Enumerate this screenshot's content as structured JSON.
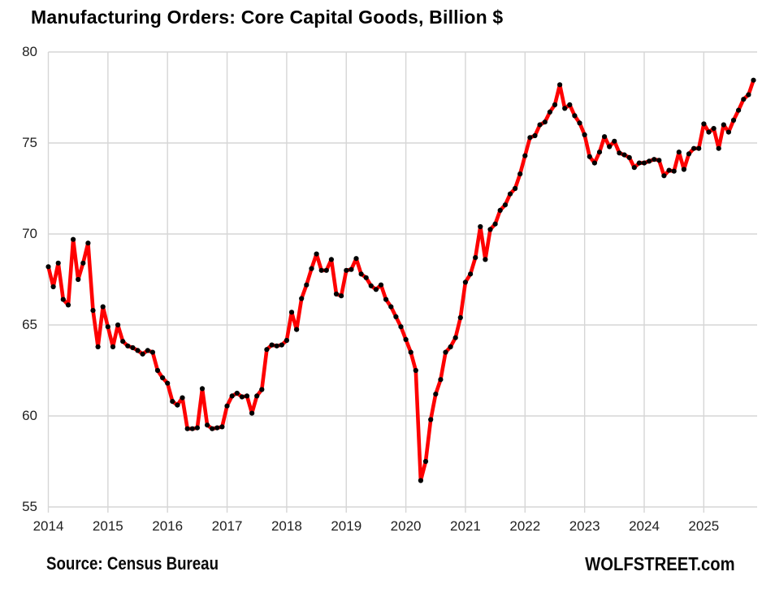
{
  "title": "Manufacturing Orders: Core Capital Goods, Billion $",
  "footer": {
    "source": "Source: Census Bureau",
    "brand": "WOLFSTREET.com"
  },
  "colors": {
    "line": "#FE0000",
    "marker": "#000000",
    "grid": "#D6D6D6",
    "axis_text": "#1f1f1f"
  },
  "chart_data": {
    "type": "line",
    "title": "Manufacturing Orders: Core Capital Goods, Billion $",
    "xlabel": "",
    "ylabel": "Billion $",
    "frequency": "monthly",
    "start_month": "2014-01",
    "end_month": "2025-11",
    "x_tick_labels": [
      "2014",
      "2015",
      "2016",
      "2017",
      "2018",
      "2019",
      "2020",
      "2021",
      "2022",
      "2023",
      "2024",
      "2025"
    ],
    "y_ticks": [
      "80",
      "75",
      "70",
      "65",
      "60",
      "55"
    ],
    "y_tick_values": [
      80,
      75,
      70,
      65,
      60,
      55
    ],
    "ylim": [
      55,
      80
    ],
    "grid": true,
    "legend": "none",
    "line_color": "#FE0000",
    "marker": "black dots",
    "values": [
      68.2,
      67.1,
      68.4,
      66.4,
      66.1,
      69.7,
      67.5,
      68.4,
      69.5,
      65.8,
      63.8,
      66.0,
      64.9,
      63.8,
      65.0,
      64.1,
      63.85,
      63.75,
      63.6,
      63.4,
      63.6,
      63.5,
      62.5,
      62.1,
      61.8,
      60.8,
      60.6,
      61.0,
      59.3,
      59.3,
      59.35,
      61.5,
      59.5,
      59.3,
      59.35,
      59.4,
      60.55,
      61.1,
      61.25,
      61.05,
      61.1,
      60.15,
      61.1,
      61.45,
      63.65,
      63.9,
      63.85,
      63.9,
      64.15,
      65.7,
      64.75,
      66.45,
      67.2,
      68.1,
      68.9,
      68.0,
      68.0,
      68.6,
      66.7,
      66.6,
      68.0,
      68.05,
      68.65,
      67.8,
      67.6,
      67.15,
      66.95,
      67.2,
      66.4,
      66.0,
      65.45,
      64.9,
      64.2,
      63.5,
      62.5,
      56.45,
      57.5,
      59.8,
      61.2,
      62.0,
      63.5,
      63.8,
      64.3,
      65.4,
      67.35,
      67.8,
      68.7,
      70.4,
      68.6,
      70.25,
      70.55,
      71.3,
      71.6,
      72.2,
      72.5,
      73.3,
      74.3,
      75.3,
      75.4,
      76.0,
      76.15,
      76.7,
      77.1,
      78.2,
      76.9,
      77.1,
      76.5,
      76.1,
      75.45,
      74.25,
      73.9,
      74.5,
      75.35,
      74.8,
      75.1,
      74.45,
      74.35,
      74.2,
      73.65,
      73.9,
      73.9,
      74.0,
      74.1,
      74.05,
      73.2,
      73.5,
      73.45,
      74.5,
      73.55,
      74.4,
      74.7,
      74.7,
      76.05,
      75.6,
      75.8,
      74.7,
      76.0,
      75.6,
      76.25,
      76.8,
      77.4,
      77.65,
      78.45
    ]
  }
}
